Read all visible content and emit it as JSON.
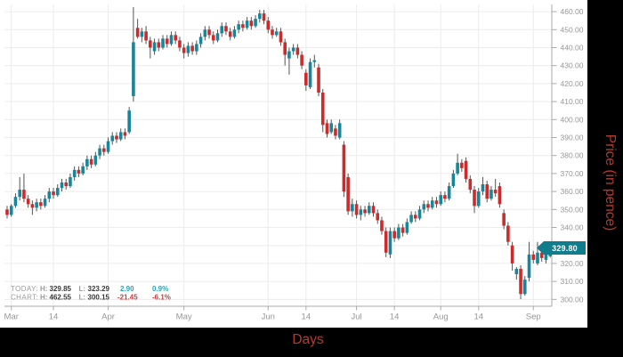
{
  "axis_titles": {
    "y": "Price (in pence)",
    "x": "Days"
  },
  "price_badge": {
    "value": "329.80"
  },
  "legend": {
    "rows": [
      {
        "label": "TODAY:",
        "h_label": "H:",
        "h_value": "329.85",
        "l_label": "L:",
        "l_value": "323.29",
        "change": "2.90",
        "change_pct": "0.9%",
        "direction": "up"
      },
      {
        "label": "CHART:",
        "h_label": "H:",
        "h_value": "462.55",
        "l_label": "L:",
        "l_value": "300.15",
        "change": "-21.45",
        "change_pct": "-6.1%",
        "direction": "down"
      }
    ]
  },
  "colors": {
    "up": "#17869a",
    "down": "#cc2b2b",
    "wick": "#555555",
    "grid": "#ececec",
    "axis": "#aaaaaa",
    "tick_text": "#979797",
    "up_text": "#2aa2b4",
    "down_text": "#cc3b3b",
    "legend_label": "#9a9a9a",
    "legend_value": "#3a3a3a",
    "axis_title": "#b8392c",
    "badge_bg": "#107d8c",
    "panel": "#ffffff",
    "outer": "#000000"
  },
  "chart_data": {
    "type": "candlestick",
    "title": "",
    "xlabel": "Days",
    "ylabel": "Price (in pence)",
    "grid": true,
    "ylim": [
      296.2,
      464.0
    ],
    "y_ticks": [
      {
        "value": 300,
        "label": "300.00"
      },
      {
        "value": 310,
        "label": "310.00"
      },
      {
        "value": 320,
        "label": "320.00"
      },
      {
        "value": 330,
        "label": "330.00"
      },
      {
        "value": 340,
        "label": "340.00"
      },
      {
        "value": 350,
        "label": "350.00"
      },
      {
        "value": 360,
        "label": "360.00"
      },
      {
        "value": 370,
        "label": "370.00"
      },
      {
        "value": 380,
        "label": "380.00"
      },
      {
        "value": 390,
        "label": "390.00"
      },
      {
        "value": 400,
        "label": "400.00"
      },
      {
        "value": 410,
        "label": "410.00"
      },
      {
        "value": 420,
        "label": "420.00"
      },
      {
        "value": 430,
        "label": "430.00"
      },
      {
        "value": 440,
        "label": "440.00"
      },
      {
        "value": 450,
        "label": "450.00"
      },
      {
        "value": 460,
        "label": "460.00"
      }
    ],
    "x_ticks": [
      {
        "label": "Mar",
        "index": 1
      },
      {
        "label": "14",
        "index": 11
      },
      {
        "label": "Apr",
        "index": 24
      },
      {
        "label": "May",
        "index": 42
      },
      {
        "label": "Jun",
        "index": 62
      },
      {
        "label": "14",
        "index": 71
      },
      {
        "label": "Jul",
        "index": 83
      },
      {
        "label": "14",
        "index": 92
      },
      {
        "label": "Aug",
        "index": 103
      },
      {
        "label": "14",
        "index": 112
      },
      {
        "label": "Sep",
        "index": 125
      }
    ],
    "today": {
      "high": 329.85,
      "low": 323.29,
      "change": 2.9,
      "change_pct": "0.9%"
    },
    "chart_range": {
      "high": 462.55,
      "low": 300.15,
      "change": -21.45,
      "change_pct": "-6.1%"
    },
    "last_price": 329.8,
    "candles": [
      [
        350,
        352,
        345,
        347
      ],
      [
        347,
        353,
        346,
        352
      ],
      [
        352,
        359,
        351,
        357
      ],
      [
        357,
        368,
        355,
        361
      ],
      [
        361,
        370,
        354,
        356
      ],
      [
        356,
        358,
        351,
        353
      ],
      [
        353,
        355,
        347,
        351
      ],
      [
        351,
        356,
        349,
        354
      ],
      [
        354,
        356,
        350,
        352
      ],
      [
        352,
        358,
        351,
        356
      ],
      [
        356,
        362,
        354,
        360
      ],
      [
        360,
        362,
        356,
        358
      ],
      [
        358,
        364,
        357,
        362
      ],
      [
        362,
        367,
        360,
        365
      ],
      [
        365,
        367,
        361,
        363
      ],
      [
        363,
        370,
        362,
        368
      ],
      [
        368,
        374,
        366,
        372
      ],
      [
        372,
        374,
        368,
        370
      ],
      [
        370,
        376,
        369,
        374
      ],
      [
        374,
        380,
        372,
        378
      ],
      [
        378,
        380,
        373,
        375
      ],
      [
        375,
        382,
        374,
        380
      ],
      [
        380,
        386,
        378,
        384
      ],
      [
        384,
        386,
        380,
        382
      ],
      [
        382,
        390,
        381,
        388
      ],
      [
        388,
        393,
        386,
        391
      ],
      [
        391,
        393,
        387,
        389
      ],
      [
        389,
        395,
        388,
        393
      ],
      [
        393,
        395,
        389,
        391
      ],
      [
        393,
        407,
        392,
        405
      ],
      [
        413,
        462.55,
        410,
        443
      ],
      [
        451,
        456,
        445,
        446
      ],
      [
        446,
        451,
        443,
        449
      ],
      [
        449,
        452,
        442,
        444
      ],
      [
        444,
        446,
        434,
        440
      ],
      [
        438,
        445,
        436,
        443
      ],
      [
        443,
        445,
        438,
        440
      ],
      [
        440,
        447,
        439,
        445
      ],
      [
        445,
        447,
        440,
        442
      ],
      [
        442,
        449,
        441,
        447
      ],
      [
        447,
        449,
        442,
        444
      ],
      [
        444,
        446,
        438,
        440
      ],
      [
        440,
        442,
        434,
        437
      ],
      [
        437,
        443,
        435,
        441
      ],
      [
        441,
        443,
        436,
        438
      ],
      [
        438,
        444,
        436,
        442
      ],
      [
        442,
        448,
        440,
        446
      ],
      [
        446,
        452,
        444,
        450
      ],
      [
        450,
        452,
        445,
        447
      ],
      [
        447,
        449,
        442,
        444
      ],
      [
        444,
        450,
        443,
        448
      ],
      [
        448,
        454,
        446,
        452
      ],
      [
        452,
        454,
        447,
        449
      ],
      [
        449,
        451,
        444,
        446
      ],
      [
        446,
        452,
        445,
        450
      ],
      [
        450,
        455,
        448,
        453
      ],
      [
        453,
        455,
        449,
        451
      ],
      [
        451,
        457,
        450,
        455
      ],
      [
        455,
        457,
        450,
        452
      ],
      [
        452,
        458,
        451,
        456
      ],
      [
        456,
        461,
        454,
        459
      ],
      [
        459,
        461,
        453,
        455
      ],
      [
        455,
        457,
        448,
        450
      ],
      [
        450,
        452,
        445,
        447
      ],
      [
        447,
        451,
        446,
        449
      ],
      [
        449,
        451,
        441,
        443
      ],
      [
        443,
        445,
        430,
        436
      ],
      [
        434,
        440,
        425,
        438
      ],
      [
        438,
        442,
        436,
        440
      ],
      [
        440,
        442,
        434,
        436
      ],
      [
        436,
        438,
        428,
        430
      ],
      [
        426,
        428,
        416,
        419
      ],
      [
        418,
        434,
        417,
        432
      ],
      [
        432,
        436,
        429,
        433
      ],
      [
        429,
        431,
        413,
        415
      ],
      [
        415,
        417,
        393,
        397
      ],
      [
        398,
        400,
        390,
        392
      ],
      [
        393,
        400,
        392,
        398
      ],
      [
        395,
        397,
        389,
        391
      ],
      [
        390,
        400,
        389,
        398
      ],
      [
        386,
        388,
        357,
        360
      ],
      [
        368,
        370,
        347,
        349
      ],
      [
        349,
        356,
        346,
        353
      ],
      [
        353,
        355,
        345,
        347
      ],
      [
        347,
        352,
        344,
        350
      ],
      [
        350,
        352,
        346,
        348
      ],
      [
        348,
        354,
        347,
        352
      ],
      [
        352,
        354,
        346,
        348
      ],
      [
        348,
        350,
        342,
        344
      ],
      [
        344,
        346,
        336,
        338
      ],
      [
        338,
        340,
        323.5,
        326
      ],
      [
        325,
        340,
        323,
        338
      ],
      [
        338,
        340,
        332,
        334
      ],
      [
        334,
        342,
        333,
        340
      ],
      [
        340,
        342,
        335,
        337
      ],
      [
        337,
        345,
        336,
        343
      ],
      [
        343,
        349,
        342,
        347
      ],
      [
        347,
        349,
        343,
        345
      ],
      [
        345,
        352,
        344,
        350
      ],
      [
        350,
        355,
        348,
        353
      ],
      [
        353,
        355,
        349,
        351
      ],
      [
        351,
        357,
        350,
        355
      ],
      [
        355,
        357,
        351,
        353
      ],
      [
        353,
        360,
        352,
        358
      ],
      [
        358,
        360,
        354,
        356
      ],
      [
        356,
        365,
        355,
        363
      ],
      [
        363,
        372,
        362,
        370
      ],
      [
        370,
        381,
        369,
        376
      ],
      [
        376,
        378,
        371,
        373
      ],
      [
        377,
        379,
        365,
        367
      ],
      [
        367,
        369,
        359,
        361
      ],
      [
        361,
        363,
        348,
        352
      ],
      [
        352,
        362,
        351,
        360
      ],
      [
        360,
        368,
        358,
        364
      ],
      [
        364,
        366,
        354,
        356
      ],
      [
        356,
        363,
        355,
        361
      ],
      [
        361,
        367,
        357,
        359
      ],
      [
        363,
        365,
        351,
        353
      ],
      [
        348,
        350,
        339,
        341
      ],
      [
        341,
        343,
        330,
        332
      ],
      [
        330,
        332,
        316,
        320
      ],
      [
        314,
        318,
        311,
        317
      ],
      [
        317,
        319,
        300.15,
        303
      ],
      [
        303,
        313,
        302,
        311
      ],
      [
        312,
        332,
        310,
        325
      ],
      [
        325,
        327,
        320,
        322
      ],
      [
        320,
        332,
        319,
        326
      ],
      [
        326,
        328,
        321,
        323
      ],
      [
        322,
        328,
        320,
        326.9
      ],
      [
        324,
        329.85,
        323.29,
        329.8
      ]
    ]
  }
}
